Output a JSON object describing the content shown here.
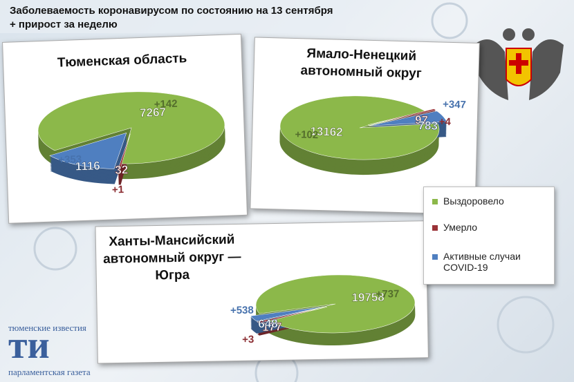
{
  "header": {
    "lines": [
      "Заболеваемость коронавирусом по состоянию на 13 сентября",
      "+ прирост за неделю"
    ]
  },
  "legend": {
    "entries": [
      {
        "name": "Выздоровело",
        "color": "#8cb84a"
      },
      {
        "name": "Умерло",
        "color": "#9a3237"
      },
      {
        "name": "Активные случаи COVID-19",
        "color": "#4f7fc0"
      }
    ]
  },
  "chart_data": [
    {
      "type": "pie",
      "title": [
        "Тюменская область"
      ],
      "values": [
        7267,
        32,
        1116
      ],
      "weekly_increase": {
        "values": [
          142,
          1,
          353
        ],
        "value_labels": [
          "+142",
          "+1",
          "+353"
        ]
      }
    },
    {
      "type": "pie",
      "title": [
        "Ямало-Ненецкий",
        "автономный округ"
      ],
      "values": [
        13162,
        97,
        783
      ],
      "weekly_increase": {
        "values": [
          102,
          4,
          347
        ],
        "value_labels": [
          "+102",
          "+4",
          "+347"
        ]
      }
    },
    {
      "type": "pie",
      "title": [
        "Ханты-Мансийский",
        "автономный округ —",
        "Югра"
      ],
      "values": [
        19758,
        177,
        648
      ],
      "weekly_increase": {
        "values": [
          737,
          3,
          538
        ],
        "value_labels": [
          "+737",
          "+3",
          "+538"
        ]
      }
    }
  ],
  "logo": {
    "lines": [
      "тюменские известия",
      "ти",
      "парламентская газета"
    ]
  }
}
